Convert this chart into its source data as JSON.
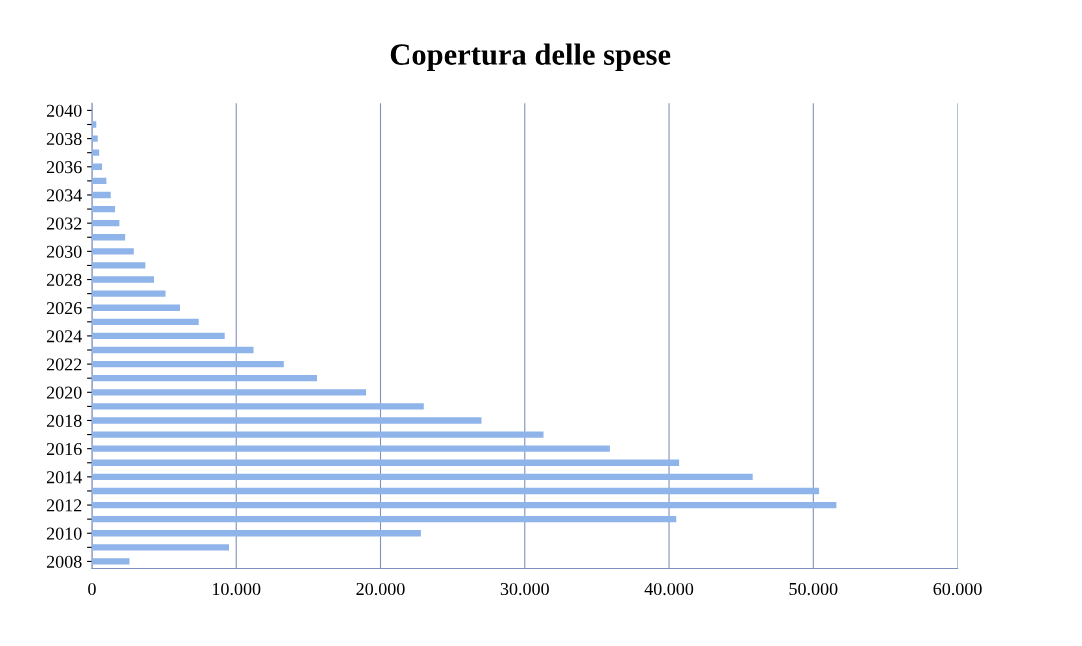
{
  "chart_data": {
    "type": "bar",
    "orientation": "horizontal",
    "title": "Copertura delle spese",
    "categories": [
      "2040",
      null,
      "2038",
      null,
      "2036",
      null,
      "2034",
      null,
      "2032",
      null,
      "2030",
      null,
      "2028",
      null,
      "2026",
      null,
      "2024",
      null,
      "2022",
      null,
      "2020",
      null,
      "2018",
      null,
      "2016",
      null,
      "2014",
      null,
      "2012",
      null,
      "2010",
      null,
      "2008"
    ],
    "values": [
      null,
      300,
      400,
      500,
      700,
      1000,
      1300,
      1600,
      1900,
      2300,
      2900,
      3700,
      4300,
      5100,
      6100,
      7400,
      9200,
      11200,
      13300,
      15600,
      19000,
      23000,
      27000,
      31300,
      35900,
      40700,
      45800,
      50400,
      51600,
      40500,
      22800,
      9500,
      2600
    ],
    "color": "#8fb4ea",
    "xlim": [
      0,
      60000
    ],
    "xticks": [
      0,
      {
        "value": 10000,
        "label": "10.000"
      },
      {
        "value": 20000,
        "label": "20.000"
      },
      {
        "value": 30000,
        "label": "30.000"
      },
      {
        "value": 40000,
        "label": "40.000"
      },
      {
        "value": 50000,
        "label": "50.000"
      },
      {
        "value": 60000,
        "label": "60.000"
      }
    ],
    "grid": "x"
  }
}
